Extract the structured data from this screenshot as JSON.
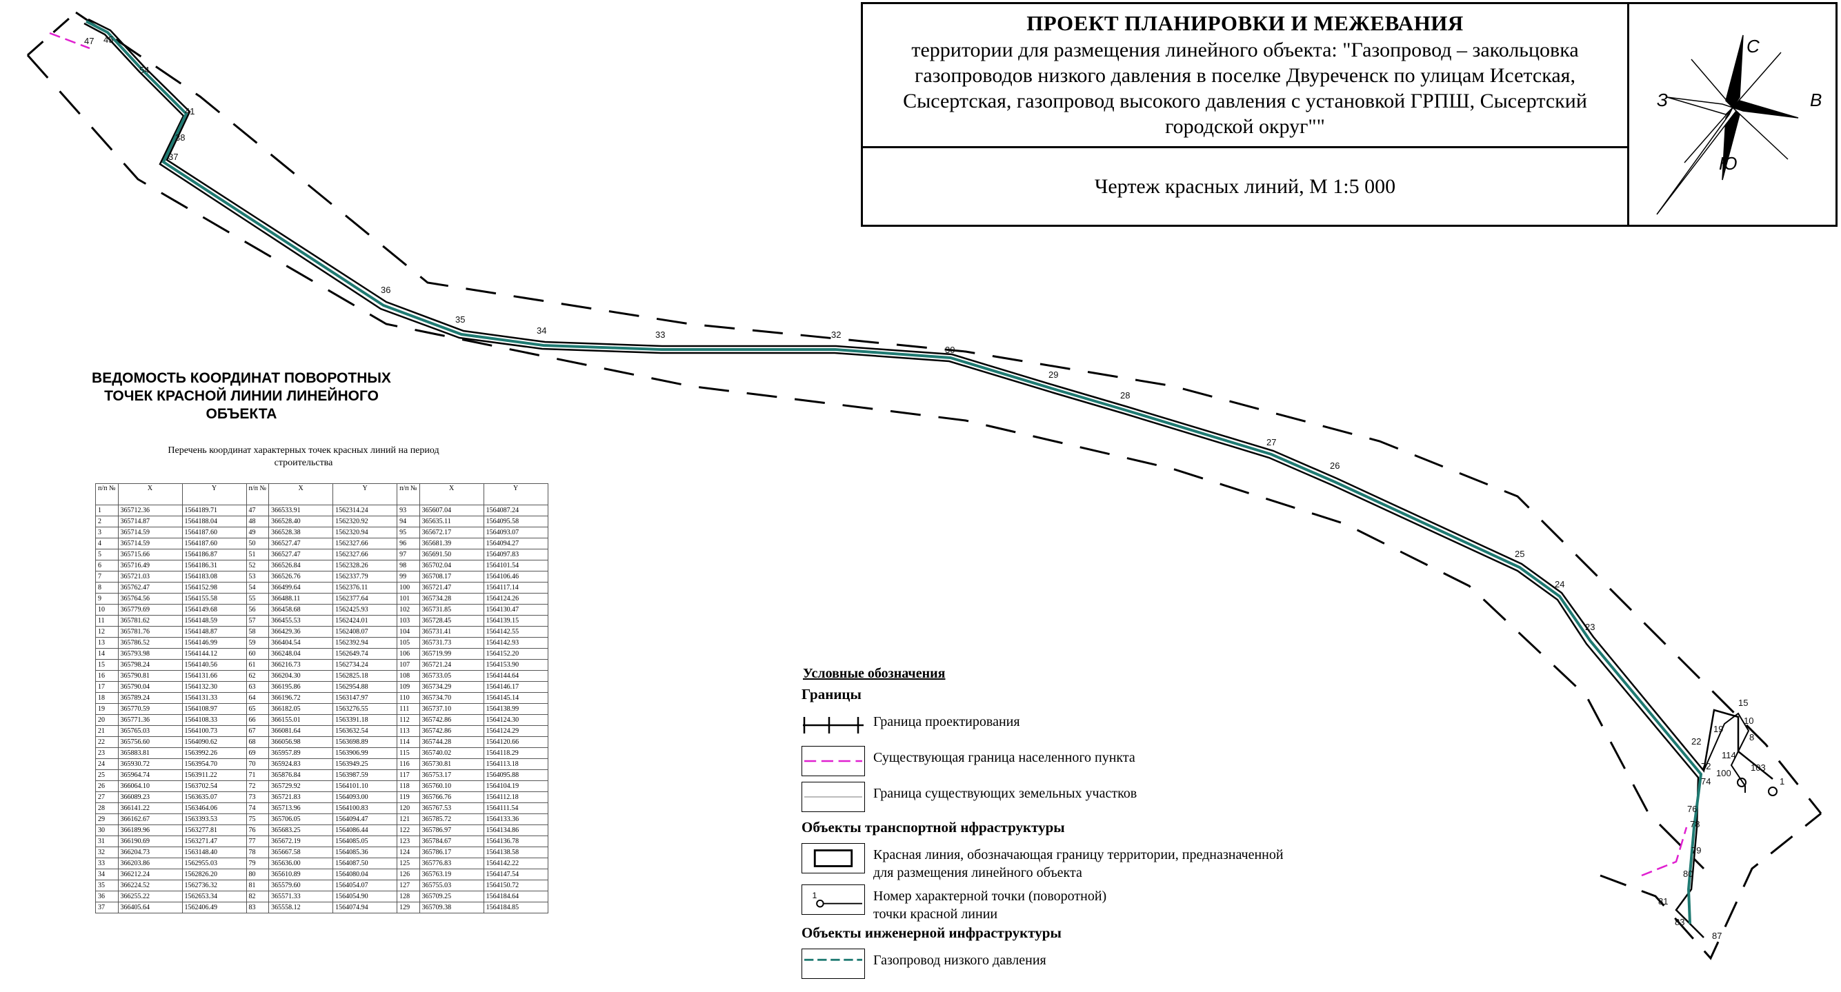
{
  "title_block": {
    "heading": "ПРОЕКТ ПЛАНИРОВКИ И МЕЖЕВАНИЯ",
    "description": "территории для размещения линейного объекта: \"Газопровод – закольцовка газопроводов низкого давления в поселке Двуреченск по улицам Исетская, Сысертская, газопровод высокого давления с установкой ГРПШ, Сысертский городской округ\"\"",
    "sheet": "Чертеж красных линий, М 1:5 000"
  },
  "compass": {
    "north": "С",
    "south": "Ю",
    "west": "З",
    "east": "В"
  },
  "statement": {
    "heading": "ВЕДОМОСТЬ КООРДИНАТ ПОВОРОТНЫХ ТОЧЕК КРАСНОЙ ЛИНИИ ЛИНЕЙНОГО ОБЪЕКТА",
    "subheading": "Перечень координат характерных точек красных линий на период строительства"
  },
  "table": {
    "headers": [
      "п/п №",
      "X",
      "Y",
      "п/п №",
      "X",
      "Y",
      "п/п №",
      "X",
      "Y"
    ],
    "rows": [
      [
        "1",
        "365712.36",
        "1564189.71",
        "47",
        "366533.91",
        "1562314.24",
        "93",
        "365607.04",
        "1564087.24"
      ],
      [
        "2",
        "365714.87",
        "1564188.04",
        "48",
        "366528.40",
        "1562320.92",
        "94",
        "365635.11",
        "1564095.58"
      ],
      [
        "3",
        "365714.59",
        "1564187.60",
        "49",
        "366528.38",
        "1562320.94",
        "95",
        "365672.17",
        "1564093.07"
      ],
      [
        "4",
        "365714.59",
        "1564187.60",
        "50",
        "366527.47",
        "1562327.66",
        "96",
        "365681.39",
        "1564094.27"
      ],
      [
        "5",
        "365715.66",
        "1564186.87",
        "51",
        "366527.47",
        "1562327.66",
        "97",
        "365691.50",
        "1564097.83"
      ],
      [
        "6",
        "365716.49",
        "1564186.31",
        "52",
        "366526.84",
        "1562328.26",
        "98",
        "365702.04",
        "1564101.54"
      ],
      [
        "7",
        "365721.03",
        "1564183.08",
        "53",
        "366526.76",
        "1562337.79",
        "99",
        "365708.17",
        "1564106.46"
      ],
      [
        "8",
        "365762.47",
        "1564152.98",
        "54",
        "366499.64",
        "1562376.11",
        "100",
        "365721.47",
        "1564117.14"
      ],
      [
        "9",
        "365764.56",
        "1564155.58",
        "55",
        "366488.11",
        "1562377.64",
        "101",
        "365734.28",
        "1564124.26"
      ],
      [
        "10",
        "365779.69",
        "1564149.68",
        "56",
        "366458.68",
        "1562425.93",
        "102",
        "365731.85",
        "1564130.47"
      ],
      [
        "11",
        "365781.62",
        "1564148.59",
        "57",
        "366455.53",
        "1562424.01",
        "103",
        "365728.45",
        "1564139.15"
      ],
      [
        "12",
        "365781.76",
        "1564148.87",
        "58",
        "366429.36",
        "1562408.07",
        "104",
        "365731.41",
        "1564142.55"
      ],
      [
        "13",
        "365786.52",
        "1564146.99",
        "59",
        "366404.54",
        "1562392.94",
        "105",
        "365731.73",
        "1564142.93"
      ],
      [
        "14",
        "365793.98",
        "1564144.12",
        "60",
        "366248.04",
        "1562649.74",
        "106",
        "365719.99",
        "1564152.20"
      ],
      [
        "15",
        "365798.24",
        "1564140.56",
        "61",
        "366216.73",
        "1562734.24",
        "107",
        "365721.24",
        "1564153.90"
      ],
      [
        "16",
        "365790.81",
        "1564131.66",
        "62",
        "366204.30",
        "1562825.18",
        "108",
        "365733.05",
        "1564144.64"
      ],
      [
        "17",
        "365790.04",
        "1564132.30",
        "63",
        "366195.86",
        "1562954.88",
        "109",
        "365734.29",
        "1564146.17"
      ],
      [
        "18",
        "365789.24",
        "1564131.33",
        "64",
        "366196.72",
        "1563147.97",
        "110",
        "365734.70",
        "1564145.14"
      ],
      [
        "19",
        "365770.59",
        "1564108.97",
        "65",
        "366182.05",
        "1563276.55",
        "111",
        "365737.10",
        "1564138.99"
      ],
      [
        "20",
        "365771.36",
        "1564108.33",
        "66",
        "366155.01",
        "1563391.18",
        "112",
        "365742.86",
        "1564124.30"
      ],
      [
        "21",
        "365765.03",
        "1564100.73",
        "67",
        "366081.64",
        "1563632.54",
        "113",
        "365742.86",
        "1564124.29"
      ],
      [
        "22",
        "365756.60",
        "1564090.62",
        "68",
        "366056.98",
        "1563698.89",
        "114",
        "365744.28",
        "1564120.66"
      ],
      [
        "23",
        "365883.81",
        "1563992.26",
        "69",
        "365957.89",
        "1563906.99",
        "115",
        "365740.02",
        "1564118.29"
      ],
      [
        "24",
        "365930.72",
        "1563954.70",
        "70",
        "365924.83",
        "1563949.25",
        "116",
        "365730.81",
        "1564113.18"
      ],
      [
        "25",
        "365964.74",
        "1563911.22",
        "71",
        "365876.84",
        "1563987.59",
        "117",
        "365753.17",
        "1564095.88"
      ],
      [
        "26",
        "366064.10",
        "1563702.54",
        "72",
        "365729.92",
        "1564101.10",
        "118",
        "365760.10",
        "1564104.19"
      ],
      [
        "27",
        "366089.23",
        "1563635.07",
        "73",
        "365721.83",
        "1564093.00",
        "119",
        "365766.76",
        "1564112.18"
      ],
      [
        "28",
        "366141.22",
        "1563464.06",
        "74",
        "365713.96",
        "1564100.83",
        "120",
        "365767.53",
        "1564111.54"
      ],
      [
        "29",
        "366162.67",
        "1563393.53",
        "75",
        "365706.05",
        "1564094.47",
        "121",
        "365785.72",
        "1564133.36"
      ],
      [
        "30",
        "366189.96",
        "1563277.81",
        "76",
        "365683.25",
        "1564086.44",
        "122",
        "365786.97",
        "1564134.86"
      ],
      [
        "31",
        "366190.69",
        "1563271.47",
        "77",
        "365672.19",
        "1564085.05",
        "123",
        "365784.67",
        "1564136.78"
      ],
      [
        "32",
        "366204.73",
        "1563148.40",
        "78",
        "365667.58",
        "1564085.36",
        "124",
        "365786.17",
        "1564138.58"
      ],
      [
        "33",
        "366203.86",
        "1562955.03",
        "79",
        "365636.00",
        "1564087.50",
        "125",
        "365776.83",
        "1564142.22"
      ],
      [
        "34",
        "366212.24",
        "1562826.20",
        "80",
        "365610.89",
        "1564080.04",
        "126",
        "365763.19",
        "1564147.54"
      ],
      [
        "35",
        "366224.52",
        "1562736.32",
        "81",
        "365579.60",
        "1564054.07",
        "127",
        "365755.03",
        "1564150.72"
      ],
      [
        "36",
        "366255.22",
        "1562653.34",
        "82",
        "365571.33",
        "1564054.90",
        "128",
        "365709.25",
        "1564184.64"
      ],
      [
        "37",
        "366405.64",
        "1562406.49",
        "83",
        "365558.12",
        "1564074.94",
        "129",
        "365709.38",
        "1564184.85"
      ]
    ]
  },
  "map": {
    "point_labels": [
      "47",
      "45",
      "54",
      "41",
      "38",
      "37",
      "36",
      "35",
      "34",
      "33",
      "32",
      "30",
      "29",
      "28",
      "27",
      "26",
      "25",
      "24",
      "23",
      "15",
      "10",
      "19",
      "8",
      "22",
      "114",
      "103",
      "72",
      "100",
      "1",
      "74",
      "76",
      "78",
      "79",
      "80",
      "81",
      "83",
      "87"
    ]
  },
  "legend": {
    "title": "Условные обозначения",
    "section_boundaries": "Границы",
    "design_boundary": "Граница проектирования",
    "settlement_boundary": "Существующая граница населенного пункта",
    "land_plots": "Граница существующих земельных участков",
    "section_transport": "Объекты транспортной нфраструктуры",
    "red_line": "Красная линия, обозначающая границу территории, предназначенной для размещения линейного объекта",
    "point_number_line1": "Номер характерной точки (поворотной)",
    "point_number_line2": "точки красной линии",
    "point_number_sample": "1",
    "section_engineering": "Объекты инженерной инфраструктуры",
    "gas_low": "Газопровод низкого давления"
  },
  "colors": {
    "gas_pipe": "#1f7a72",
    "settlement_boundary": "#e020d0",
    "line": "#000000"
  }
}
